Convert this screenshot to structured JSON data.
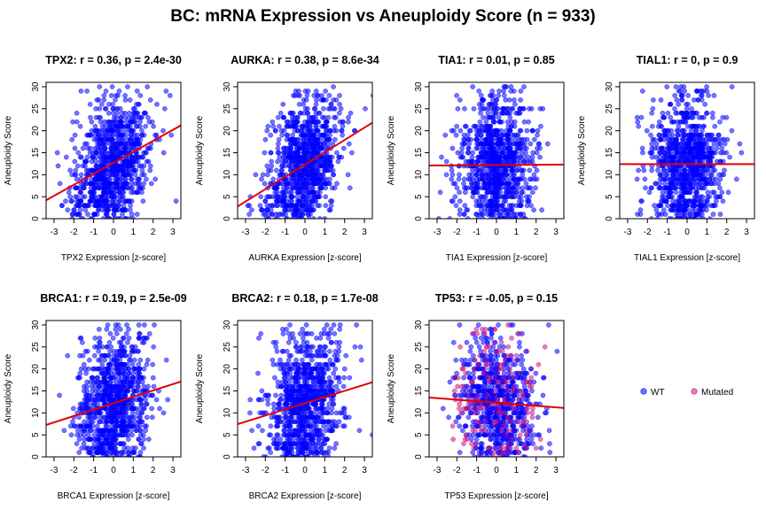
{
  "title": "BC: mRNA Expression vs Aneuploidy Score (n = 933)",
  "colors": {
    "wt": "#0000ff",
    "mutated": "#c71585",
    "regression": "#e00000",
    "point_alpha": 0.55
  },
  "legend": {
    "position": "right",
    "entries": [
      {
        "label": "WT",
        "color": "#0000ff"
      },
      {
        "label": "Mutated",
        "color": "#c71585"
      }
    ]
  },
  "chart_data": [
    {
      "type": "scatter",
      "gene": "TPX2",
      "title": "TPX2: r = 0.36, p = 2.4e-30",
      "xlabel": "TPX2 Expression [z-score]",
      "ylabel": "Aneuploidy Score",
      "xlim": [
        -3.4,
        3.4
      ],
      "ylim": [
        0,
        31
      ],
      "xticks": [
        -3,
        -2,
        -1,
        0,
        1,
        2,
        3
      ],
      "yticks": [
        0,
        5,
        10,
        15,
        20,
        25,
        30
      ],
      "x_mean": -0.1,
      "x_sd": 0.95,
      "corr": 0.36,
      "mutated_fraction": 0.0,
      "regression": {
        "intercept": 12.7,
        "slope": 2.5
      },
      "n_points": 933
    },
    {
      "type": "scatter",
      "gene": "AURKA",
      "title": "AURKA: r = 0.38, p = 8.6e-34",
      "xlabel": "AURKA Expression [z-score]",
      "ylabel": "Aneuploidy Score",
      "xlim": [
        -3.4,
        3.4
      ],
      "ylim": [
        0,
        31
      ],
      "xticks": [
        -3,
        -2,
        -1,
        0,
        1,
        2,
        3
      ],
      "yticks": [
        0,
        5,
        10,
        15,
        20,
        25,
        30
      ],
      "x_mean": 0.0,
      "x_sd": 0.95,
      "corr": 0.38,
      "mutated_fraction": 0.0,
      "regression": {
        "intercept": 12.3,
        "slope": 2.8
      },
      "n_points": 933
    },
    {
      "type": "scatter",
      "gene": "TIA1",
      "title": "TIA1: r = 0.01, p = 0.85",
      "xlabel": "TIA1 Expression [z-score]",
      "ylabel": "Aneuploidy Score",
      "xlim": [
        -3.4,
        3.4
      ],
      "ylim": [
        0,
        31
      ],
      "xticks": [
        -3,
        -2,
        -1,
        0,
        1,
        2,
        3
      ],
      "yticks": [
        0,
        5,
        10,
        15,
        20,
        25,
        30
      ],
      "x_mean": 0.0,
      "x_sd": 0.9,
      "corr": 0.01,
      "mutated_fraction": 0.0,
      "regression": {
        "intercept": 12.2,
        "slope": 0.03
      },
      "n_points": 933
    },
    {
      "type": "scatter",
      "gene": "TIAL1",
      "title": "TIAL1: r = 0, p = 0.9",
      "xlabel": "TIAL1 Expression [z-score]",
      "ylabel": "Aneuploidy Score",
      "xlim": [
        -3.4,
        3.4
      ],
      "ylim": [
        0,
        31
      ],
      "xticks": [
        -3,
        -2,
        -1,
        0,
        1,
        2,
        3
      ],
      "yticks": [
        0,
        5,
        10,
        15,
        20,
        25,
        30
      ],
      "x_mean": 0.0,
      "x_sd": 0.9,
      "corr": 0.0,
      "mutated_fraction": 0.0,
      "regression": {
        "intercept": 12.4,
        "slope": 0.0
      },
      "n_points": 933
    },
    {
      "type": "scatter",
      "gene": "BRCA1",
      "title": "BRCA1: r = 0.19, p = 2.5e-09",
      "xlabel": "BRCA1 Expression [z-score]",
      "ylabel": "Aneuploidy Score",
      "xlim": [
        -3.4,
        3.4
      ],
      "ylim": [
        0,
        31
      ],
      "xticks": [
        -3,
        -2,
        -1,
        0,
        1,
        2,
        3
      ],
      "yticks": [
        0,
        5,
        10,
        15,
        20,
        25,
        30
      ],
      "x_mean": 0.0,
      "x_sd": 0.9,
      "corr": 0.19,
      "mutated_fraction": 0.0,
      "regression": {
        "intercept": 12.2,
        "slope": 1.45
      },
      "n_points": 933
    },
    {
      "type": "scatter",
      "gene": "BRCA2",
      "title": "BRCA2: r = 0.18, p = 1.7e-08",
      "xlabel": "BRCA2 Expression [z-score]",
      "ylabel": "Aneuploidy Score",
      "xlim": [
        -3.4,
        3.4
      ],
      "ylim": [
        0,
        31
      ],
      "xticks": [
        -3,
        -2,
        -1,
        0,
        1,
        2,
        3
      ],
      "yticks": [
        0,
        5,
        10,
        15,
        20,
        25,
        30
      ],
      "x_mean": 0.0,
      "x_sd": 0.9,
      "corr": 0.18,
      "mutated_fraction": 0.0,
      "regression": {
        "intercept": 12.2,
        "slope": 1.4
      },
      "n_points": 933
    },
    {
      "type": "scatter",
      "gene": "TP53",
      "title": "TP53: r = -0.05, p = 0.15",
      "xlabel": "TP53 Expression [z-score]",
      "ylabel": "Aneuploidy Score",
      "xlim": [
        -3.4,
        3.4
      ],
      "ylim": [
        0,
        31
      ],
      "xticks": [
        -3,
        -2,
        -1,
        0,
        1,
        2,
        3
      ],
      "yticks": [
        0,
        5,
        10,
        15,
        20,
        25,
        30
      ],
      "x_mean": 0.0,
      "x_sd": 0.95,
      "corr": -0.05,
      "mutated_fraction": 0.3,
      "regression": {
        "intercept": 12.3,
        "slope": -0.35
      },
      "n_points": 933
    }
  ]
}
